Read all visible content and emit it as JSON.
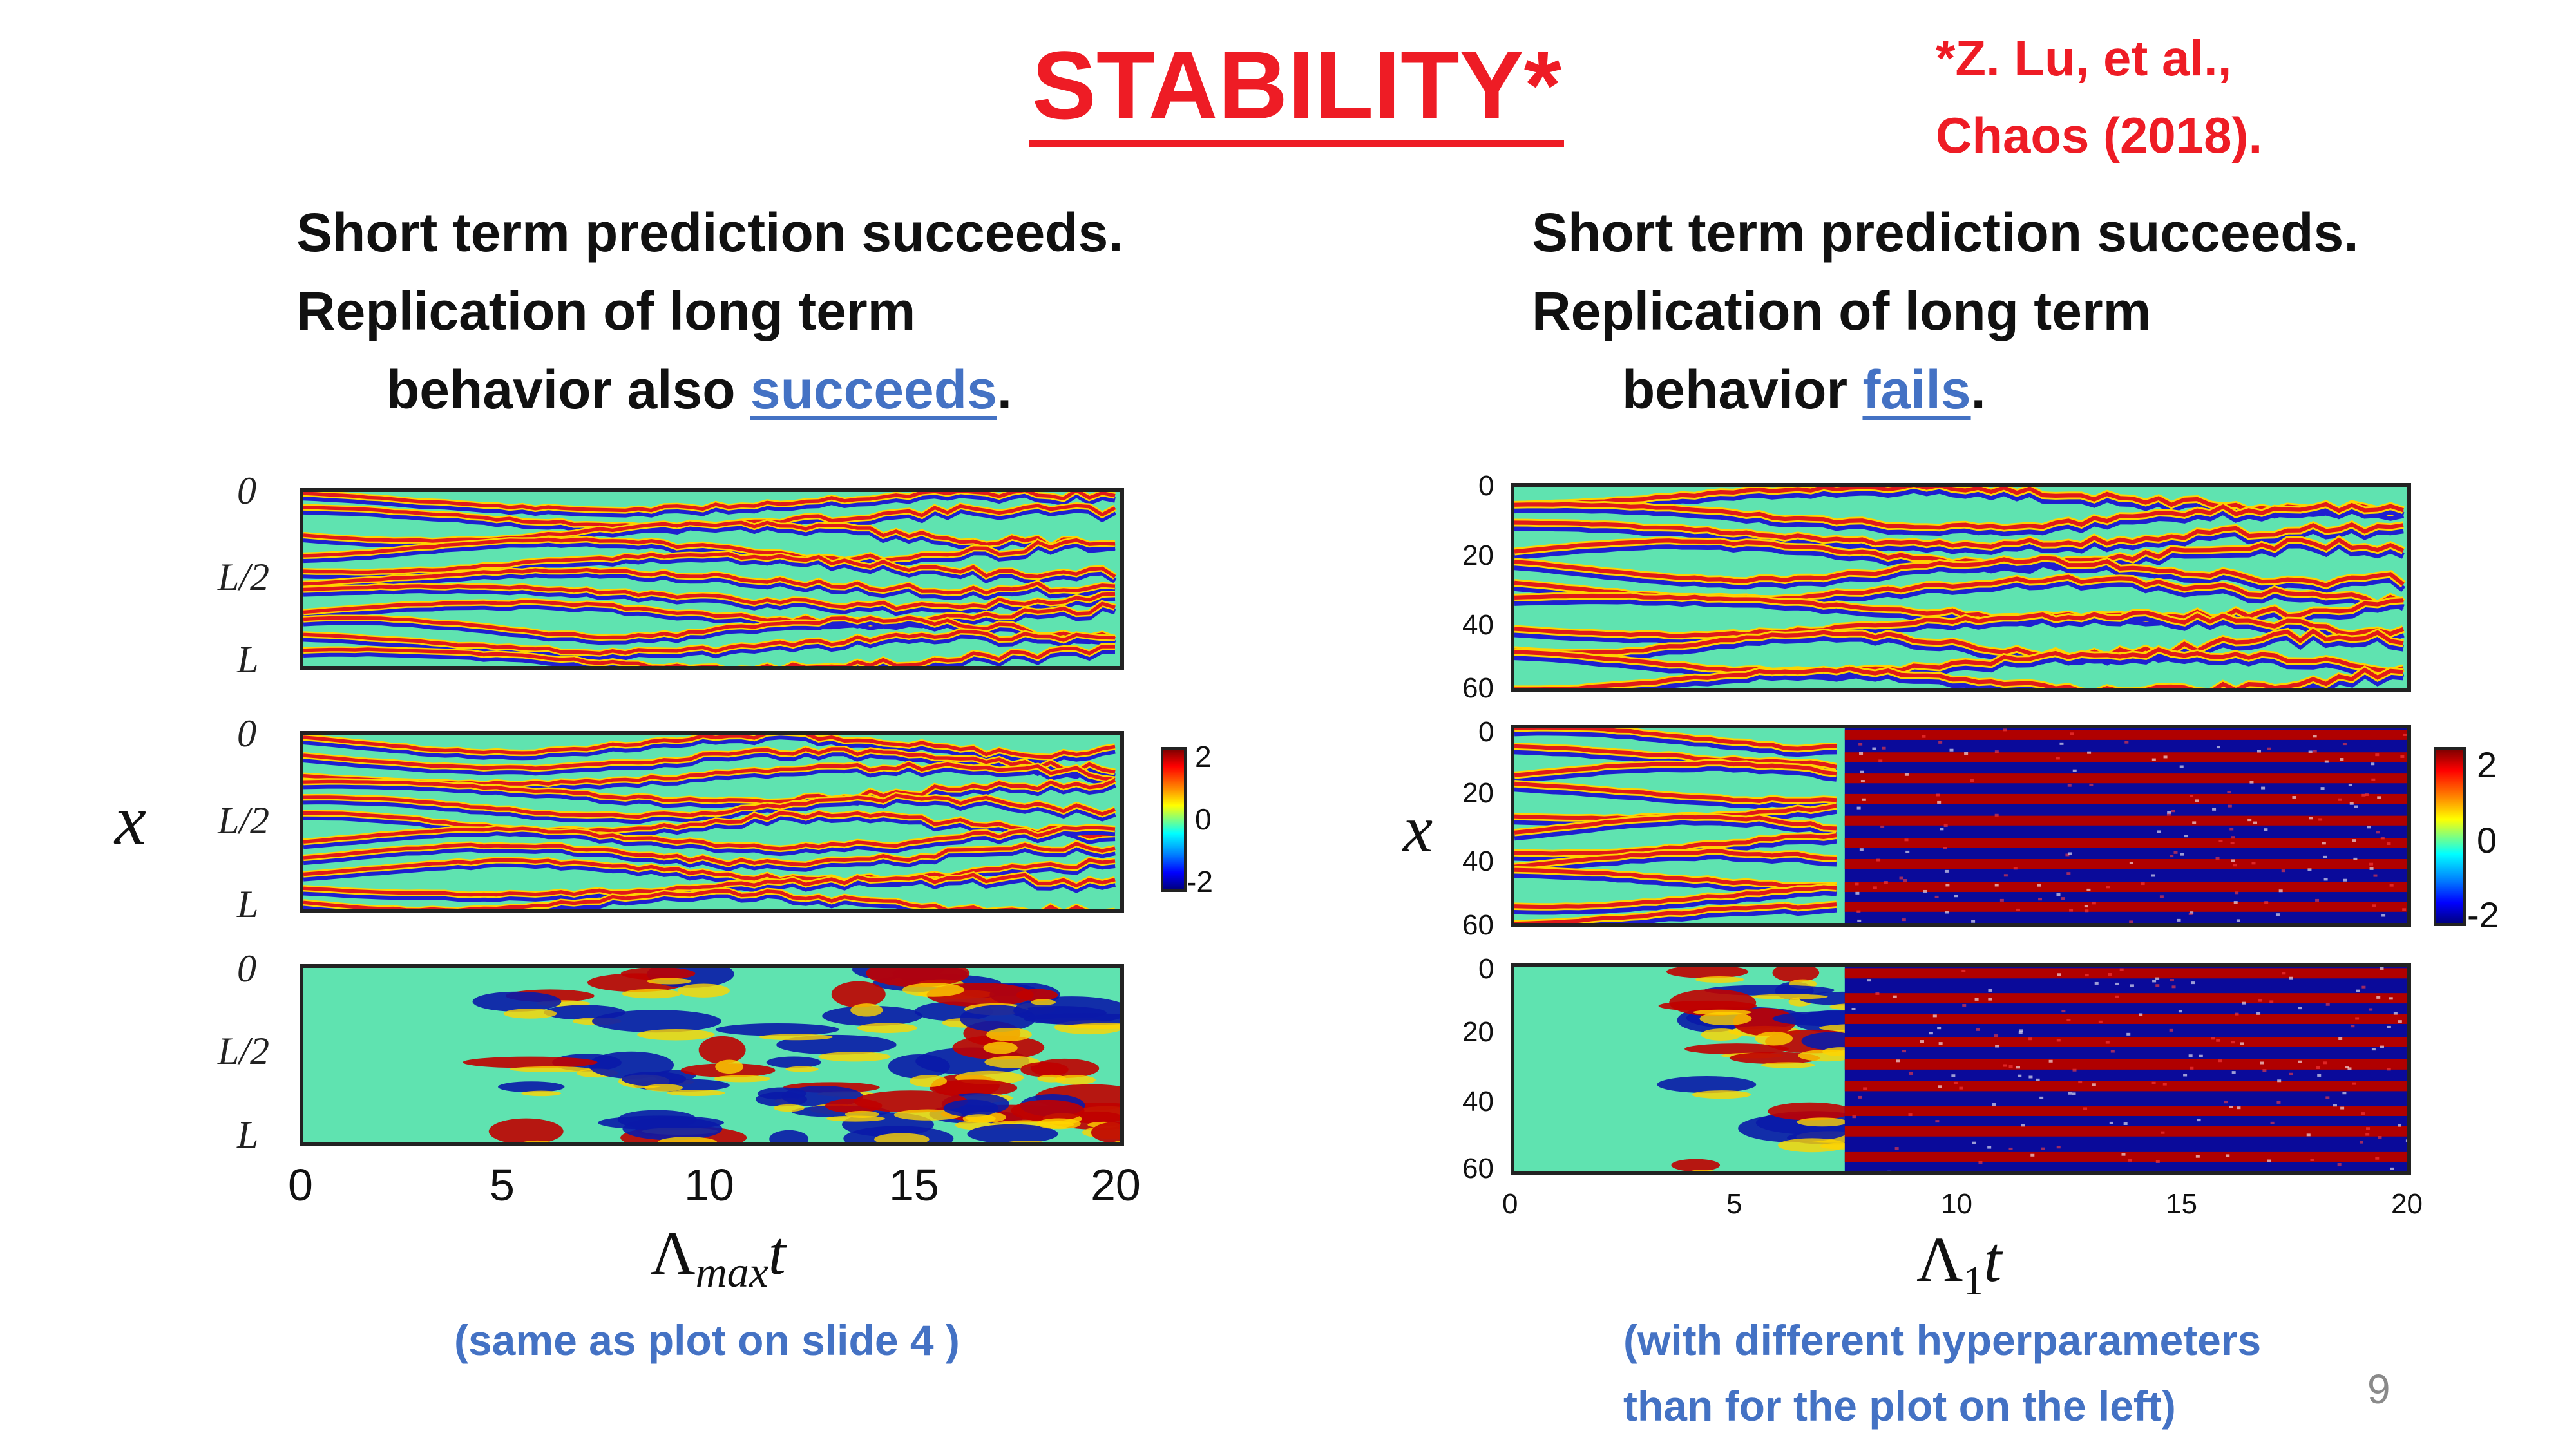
{
  "slide": {
    "title": "STABILITY*",
    "reference": [
      "*Z. Lu, et al.,",
      "Chaos (2018)."
    ],
    "page_number": "9"
  },
  "left": {
    "caption": {
      "line1": "Short term prediction succeeds.",
      "line2": "Replication of long term",
      "line3_prefix": "behavior also ",
      "line3_link": "succeeds",
      "line3_suffix": "."
    },
    "note": [
      "(same as plot on slide 4 )"
    ],
    "y_ticks": [
      "0",
      "L/2",
      "L"
    ],
    "x_ticks": [
      "0",
      "5",
      "10",
      "15",
      "20"
    ],
    "x_label": "Λ",
    "x_label_sub": "max",
    "x_label_var": "t",
    "y_label": "x",
    "colorbar_ticks": [
      "2",
      "0",
      "-2"
    ]
  },
  "right": {
    "caption": {
      "line1": "Short term prediction succeeds.",
      "line2": "Replication of long term",
      "line3_prefix": "behavior ",
      "line3_link": "fails",
      "line3_suffix": "."
    },
    "note": [
      "(with different hyperparameters",
      "than for the plot on the left)"
    ],
    "y_ticks": [
      "0",
      "20",
      "40",
      "60"
    ],
    "x_ticks": [
      "0",
      "5",
      "10",
      "15",
      "20"
    ],
    "x_label": "Λ",
    "x_label_sub": "1",
    "x_label_var": "t",
    "y_label": "x",
    "colorbar_ticks": [
      "2",
      "0",
      "-2"
    ]
  },
  "colors": {
    "title_red": "#ee1c25",
    "link_blue": "#4472c4",
    "field_bg": "#5fe3b0",
    "saturated_red": "#b00000",
    "saturated_blue": "#0a0a9a"
  }
}
